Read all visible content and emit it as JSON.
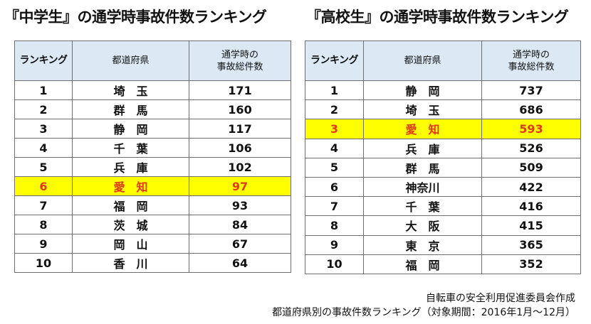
{
  "junior_high": {
    "title": "『中学生』の通学時事故件数ランキング",
    "headers": {
      "rank": "ランキング",
      "prefecture": "都道府県",
      "count_line1": "通学時の",
      "count_line2": "事故総件数"
    },
    "highlight_color": "#ffff00",
    "highlight_text_color": "#e03a12",
    "rows": [
      {
        "rank": "1",
        "prefecture": "埼　玉",
        "count": "171",
        "highlight": false
      },
      {
        "rank": "2",
        "prefecture": "群　馬",
        "count": "160",
        "highlight": false
      },
      {
        "rank": "3",
        "prefecture": "静　岡",
        "count": "117",
        "highlight": false
      },
      {
        "rank": "4",
        "prefecture": "千　葉",
        "count": "106",
        "highlight": false
      },
      {
        "rank": "5",
        "prefecture": "兵　庫",
        "count": "102",
        "highlight": false
      },
      {
        "rank": "6",
        "prefecture": "愛　知",
        "count": "97",
        "highlight": true
      },
      {
        "rank": "7",
        "prefecture": "福　岡",
        "count": "93",
        "highlight": false
      },
      {
        "rank": "8",
        "prefecture": "茨　城",
        "count": "84",
        "highlight": false
      },
      {
        "rank": "9",
        "prefecture": "岡　山",
        "count": "67",
        "highlight": false
      },
      {
        "rank": "10",
        "prefecture": "香　川",
        "count": "64",
        "highlight": false
      }
    ]
  },
  "high_school": {
    "title": "『高校生』の通学時事故件数ランキング",
    "headers": {
      "rank": "ランキング",
      "prefecture": "都道府県",
      "count_line1": "通学時の",
      "count_line2": "事故総件数"
    },
    "rows": [
      {
        "rank": "1",
        "prefecture": "静　岡",
        "count": "737",
        "highlight": false
      },
      {
        "rank": "2",
        "prefecture": "埼　玉",
        "count": "686",
        "highlight": false
      },
      {
        "rank": "3",
        "prefecture": "愛　知",
        "count": "593",
        "highlight": true
      },
      {
        "rank": "4",
        "prefecture": "兵　庫",
        "count": "526",
        "highlight": false
      },
      {
        "rank": "5",
        "prefecture": "群　馬",
        "count": "509",
        "highlight": false
      },
      {
        "rank": "6",
        "prefecture": "神奈川",
        "count": "422",
        "highlight": false
      },
      {
        "rank": "7",
        "prefecture": "千　葉",
        "count": "416",
        "highlight": false
      },
      {
        "rank": "8",
        "prefecture": "大　阪",
        "count": "415",
        "highlight": false
      },
      {
        "rank": "9",
        "prefecture": "東　京",
        "count": "365",
        "highlight": false
      },
      {
        "rank": "10",
        "prefecture": "福　岡",
        "count": "352",
        "highlight": false
      }
    ]
  },
  "footer": {
    "line1": "自転車の安全利用促進委員会作成",
    "line2": "都道府県別の事故件数ランキング（対象期間：2016年1月～12月）"
  }
}
